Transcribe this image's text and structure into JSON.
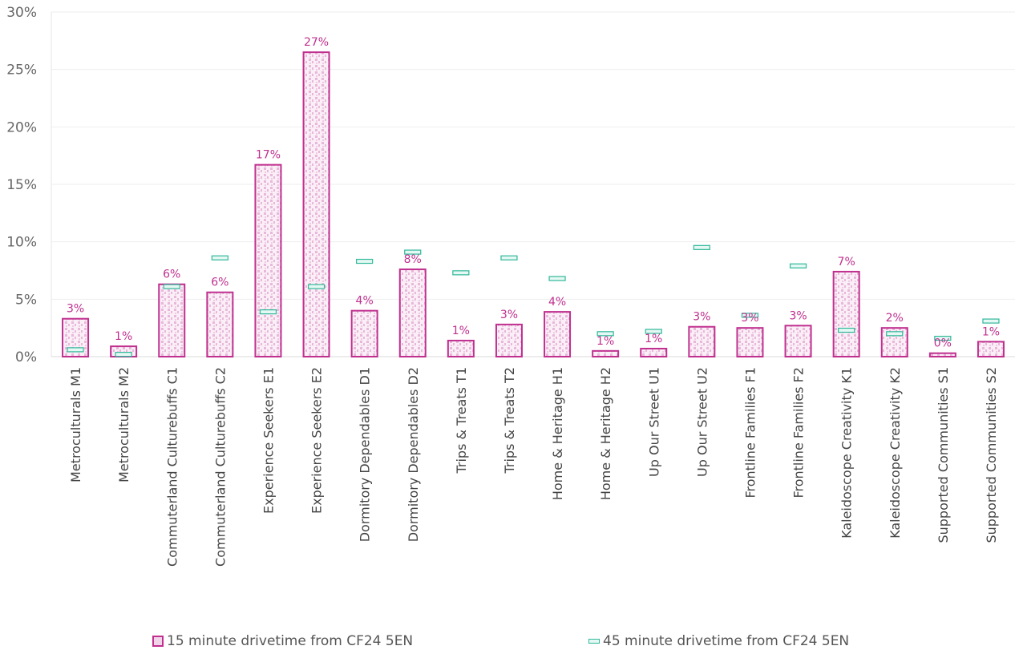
{
  "chart_data": {
    "type": "bar",
    "categories": [
      "Metroculturals M1",
      "Metroculturals M2",
      "Commuterland Culturebuffs C1",
      "Commuterland Culturebuffs C2",
      "Experience Seekers E1",
      "Experience Seekers E2",
      "Dormitory Dependables D1",
      "Dormitory Dependables D2",
      "Trips & Treats T1",
      "Trips & Treats T2",
      "Home & Heritage H1",
      "Home & Heritage H2",
      "Up Our Street U1",
      "Up Our Street U2",
      "Frontline Families F1",
      "Frontline Families F2",
      "Kaleidoscope Creativity K1",
      "Kaleidoscope Creativity K2",
      "Supported Communities S1",
      "Supported Communities S2"
    ],
    "series": [
      {
        "name": "15 minute drivetime from CF24 5EN",
        "values": [
          3.3,
          0.9,
          6.3,
          5.6,
          16.7,
          26.5,
          4.0,
          7.6,
          1.4,
          2.8,
          3.9,
          0.5,
          0.7,
          2.6,
          2.5,
          2.7,
          7.4,
          2.5,
          0.3,
          1.3
        ],
        "data_labels": [
          "3%",
          "1%",
          "6%",
          "6%",
          "17%",
          "27%",
          "4%",
          "8%",
          "1%",
          "3%",
          "4%",
          "1%",
          "1%",
          "3%",
          "3%",
          "3%",
          "7%",
          "2%",
          "0%",
          "1%"
        ],
        "color": "#c0308f"
      },
      {
        "name": "45 minute drivetime from CF24 5EN",
        "values": [
          0.6,
          0.2,
          6.1,
          8.6,
          3.9,
          6.1,
          8.3,
          9.1,
          7.3,
          8.6,
          6.8,
          2.0,
          2.2,
          9.5,
          3.6,
          7.9,
          2.3,
          2.0,
          1.6,
          3.1
        ],
        "color": "#2fb89a"
      }
    ],
    "yticks": [
      "0%",
      "5%",
      "10%",
      "15%",
      "20%",
      "25%",
      "30%"
    ],
    "ylim": [
      0,
      30
    ],
    "grid": true,
    "legend_position": "bottom"
  }
}
